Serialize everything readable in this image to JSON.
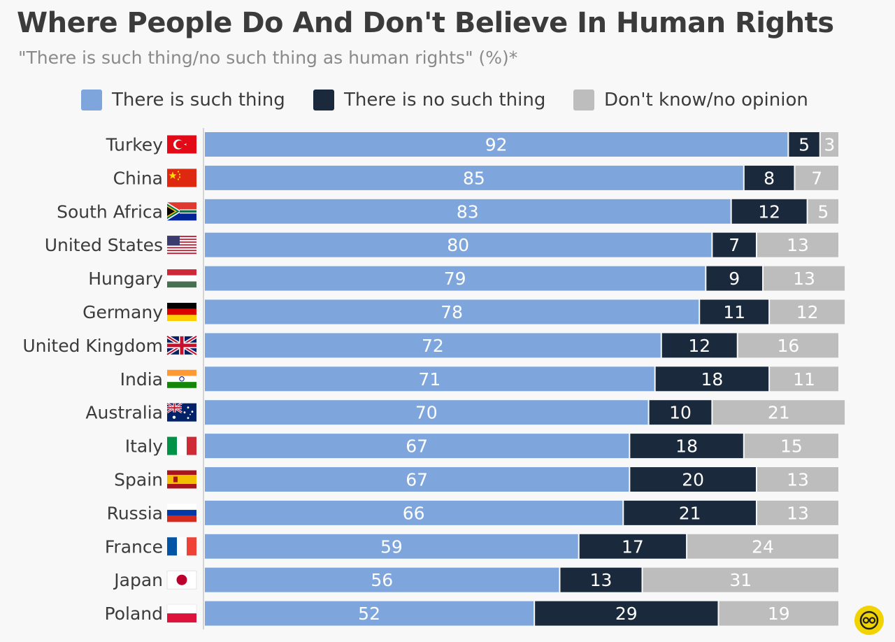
{
  "header": {
    "title": "Where People Do And Don't Believe In Human Rights",
    "subtitle": "\"There is such thing/no such thing as human rights\" (%)*"
  },
  "legend": [
    {
      "label": "There is such thing",
      "color": "#7ea6dd"
    },
    {
      "label": "There is no such thing",
      "color": "#1a2a3c"
    },
    {
      "label": "Don't know/no opinion",
      "color": "#bdbdbd"
    }
  ],
  "logo": {
    "icon": "statista-logo-icon"
  },
  "chart_data": {
    "type": "bar",
    "orientation": "horizontal",
    "stacked": true,
    "title": "Where People Do And Don't Believe In Human Rights",
    "subtitle": "\"There is such thing/no such thing as human rights\" (%)*",
    "categories": [
      "Turkey",
      "China",
      "South Africa",
      "United States",
      "Hungary",
      "Germany",
      "United Kingdom",
      "India",
      "Australia",
      "Italy",
      "Spain",
      "Russia",
      "France",
      "Japan",
      "Poland"
    ],
    "flags": [
      "turkey-flag-icon",
      "china-flag-icon",
      "south-africa-flag-icon",
      "united-states-flag-icon",
      "hungary-flag-icon",
      "germany-flag-icon",
      "united-kingdom-flag-icon",
      "india-flag-icon",
      "australia-flag-icon",
      "italy-flag-icon",
      "spain-flag-icon",
      "russia-flag-icon",
      "france-flag-icon",
      "japan-flag-icon",
      "poland-flag-icon"
    ],
    "series": [
      {
        "name": "There is such thing",
        "color": "#7ea6dd",
        "values": [
          92,
          85,
          83,
          80,
          79,
          78,
          72,
          71,
          70,
          67,
          67,
          66,
          59,
          56,
          52
        ]
      },
      {
        "name": "There is no such thing",
        "color": "#1a2a3c",
        "values": [
          5,
          8,
          12,
          7,
          9,
          11,
          12,
          18,
          10,
          18,
          20,
          21,
          17,
          13,
          29
        ]
      },
      {
        "name": "Don't know/no opinion",
        "color": "#bdbdbd",
        "values": [
          3,
          7,
          5,
          13,
          13,
          12,
          16,
          11,
          21,
          15,
          13,
          13,
          24,
          31,
          19
        ]
      }
    ],
    "xlim": [
      0,
      105
    ],
    "grid": false,
    "legend_position": "top"
  }
}
